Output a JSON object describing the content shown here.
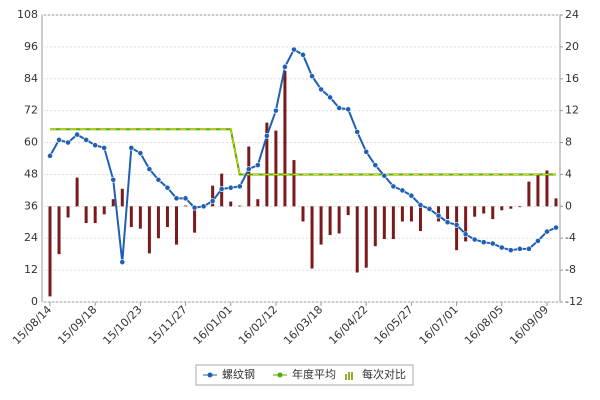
{
  "chart_data": {
    "type": "combo",
    "categories": [
      "15/08/14",
      null,
      null,
      null,
      null,
      "15/09/18",
      null,
      null,
      null,
      null,
      "15/10/23",
      null,
      null,
      null,
      null,
      "15/11/27",
      null,
      null,
      null,
      null,
      "16/01/01",
      null,
      null,
      null,
      null,
      "16/02/12",
      null,
      null,
      null,
      null,
      "16/03/18",
      null,
      null,
      null,
      null,
      "16/04/22",
      null,
      null,
      null,
      null,
      "16/05/27",
      null,
      null,
      null,
      null,
      "16/07/01",
      null,
      null,
      null,
      null,
      "16/08/05",
      null,
      null,
      null,
      null,
      "16/09/09",
      null
    ],
    "series": [
      {
        "name": "螺纹钢",
        "type": "line",
        "color": "#1f5fb4",
        "values": [
          55,
          61,
          60,
          63,
          61,
          59,
          58,
          46,
          15,
          58,
          56,
          50,
          46,
          43,
          39,
          39,
          35.5,
          36,
          38,
          42.5,
          43,
          43.5,
          50,
          51.5,
          62.5,
          72,
          88.5,
          95,
          93,
          85,
          80,
          77,
          73,
          72.5,
          64,
          56.5,
          51.5,
          47.5,
          43.5,
          42,
          40,
          36.5,
          35,
          32.5,
          30,
          29,
          25.5,
          23.5,
          22.5,
          22,
          20.5,
          19.5,
          20,
          20,
          23,
          26.5,
          28
        ]
      },
      {
        "name": "年度平均",
        "type": "line",
        "color": "#55aa00",
        "values": [
          65,
          65,
          65,
          65,
          65,
          65,
          65,
          65,
          65,
          65,
          65,
          65,
          65,
          65,
          65,
          65,
          65,
          65,
          65,
          65,
          65,
          48,
          48,
          48,
          48,
          48,
          48,
          48,
          48,
          48,
          48,
          48,
          48,
          48,
          48,
          48,
          48,
          48,
          48,
          48,
          48,
          48,
          48,
          48,
          48,
          48,
          48,
          48,
          48,
          48,
          48,
          48,
          48,
          48,
          48,
          48,
          48
        ]
      },
      {
        "name": "每次对比",
        "type": "bar",
        "axis": "y2",
        "color": "#7a1a1a",
        "values": [
          -11.3,
          -6,
          -1.4,
          3.6,
          -2.1,
          -2.1,
          -1,
          0.9,
          2.2,
          -2.6,
          -2.8,
          -5.9,
          -4,
          -2.6,
          -4.8,
          0.1,
          -3.3,
          0.1,
          2.6,
          4.1,
          0.6,
          0.1,
          7.5,
          0.9,
          10.5,
          9.5,
          17,
          5.8,
          -1.9,
          -7.8,
          -4.8,
          -3.6,
          -3.4,
          -1.1,
          -8.3,
          -7.7,
          -5,
          -4.1,
          -4.1,
          -1.9,
          -1.9,
          -3.1,
          -0.6,
          -1.9,
          -1.6,
          -5.5,
          -4.4,
          -1.3,
          -0.9,
          -1.6,
          -0.5,
          -0.3,
          -0.1,
          3.1,
          3.9,
          4.5,
          1
        ]
      }
    ],
    "ylim": [
      0,
      108
    ],
    "yticks": [
      0,
      12,
      24,
      36,
      48,
      60,
      72,
      84,
      96,
      108
    ],
    "y2lim": [
      -12,
      24
    ],
    "y2ticks": [
      -12,
      -8,
      -4,
      0,
      4,
      8,
      12,
      16,
      20,
      24
    ],
    "grid": true
  }
}
